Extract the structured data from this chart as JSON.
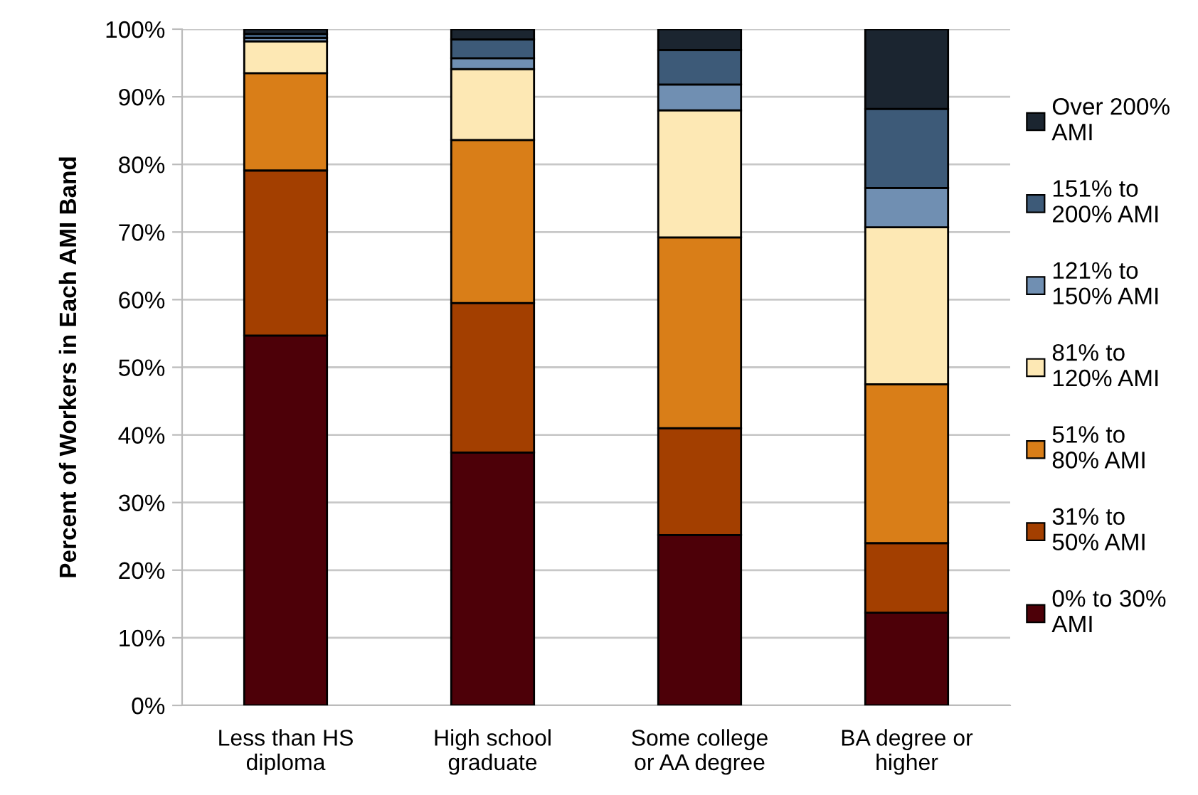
{
  "chart_data": {
    "type": "bar",
    "stacked": true,
    "ylabel": "Percent of Workers in Each AMI Band",
    "categories": [
      "Less than HS\ndiploma",
      "High school\ngraduate",
      "Some college\nor AA degree",
      "BA degree or\nhigher"
    ],
    "series": [
      {
        "name": "0% to 30%\nAMI",
        "color": "#4d0008",
        "values": [
          54.7,
          37.4,
          25.2,
          13.7
        ]
      },
      {
        "name": "31% to\n50% AMI",
        "color": "#a33f00",
        "values": [
          24.4,
          22.1,
          15.8,
          10.3
        ]
      },
      {
        "name": "51% to\n80% AMI",
        "color": "#d97e18",
        "values": [
          14.4,
          24.1,
          28.2,
          23.5
        ]
      },
      {
        "name": "81% to\n120% AMI",
        "color": "#fde8b4",
        "values": [
          4.7,
          10.5,
          18.8,
          23.2
        ]
      },
      {
        "name": "121% to\n150% AMI",
        "color": "#708fb2",
        "values": [
          0.5,
          1.6,
          3.8,
          5.8
        ]
      },
      {
        "name": "151% to\n200% AMI",
        "color": "#3d5a78",
        "values": [
          0.6,
          2.8,
          5.1,
          11.7
        ]
      },
      {
        "name": "Over 200%\nAMI",
        "color": "#1b2530",
        "values": [
          0.7,
          1.5,
          3.1,
          11.8
        ]
      }
    ],
    "ylim": [
      0,
      100
    ],
    "yticks": [
      {
        "value": 0,
        "label": "0%"
      },
      {
        "value": 10,
        "label": "10%"
      },
      {
        "value": 20,
        "label": "20%"
      },
      {
        "value": 30,
        "label": "30%"
      },
      {
        "value": 40,
        "label": "40%"
      },
      {
        "value": 50,
        "label": "50%"
      },
      {
        "value": 60,
        "label": "60%"
      },
      {
        "value": 70,
        "label": "70%"
      },
      {
        "value": 80,
        "label": "80%"
      },
      {
        "value": 90,
        "label": "90%"
      },
      {
        "value": 100,
        "label": "100%"
      }
    ],
    "grid": "y",
    "legend": "right"
  }
}
